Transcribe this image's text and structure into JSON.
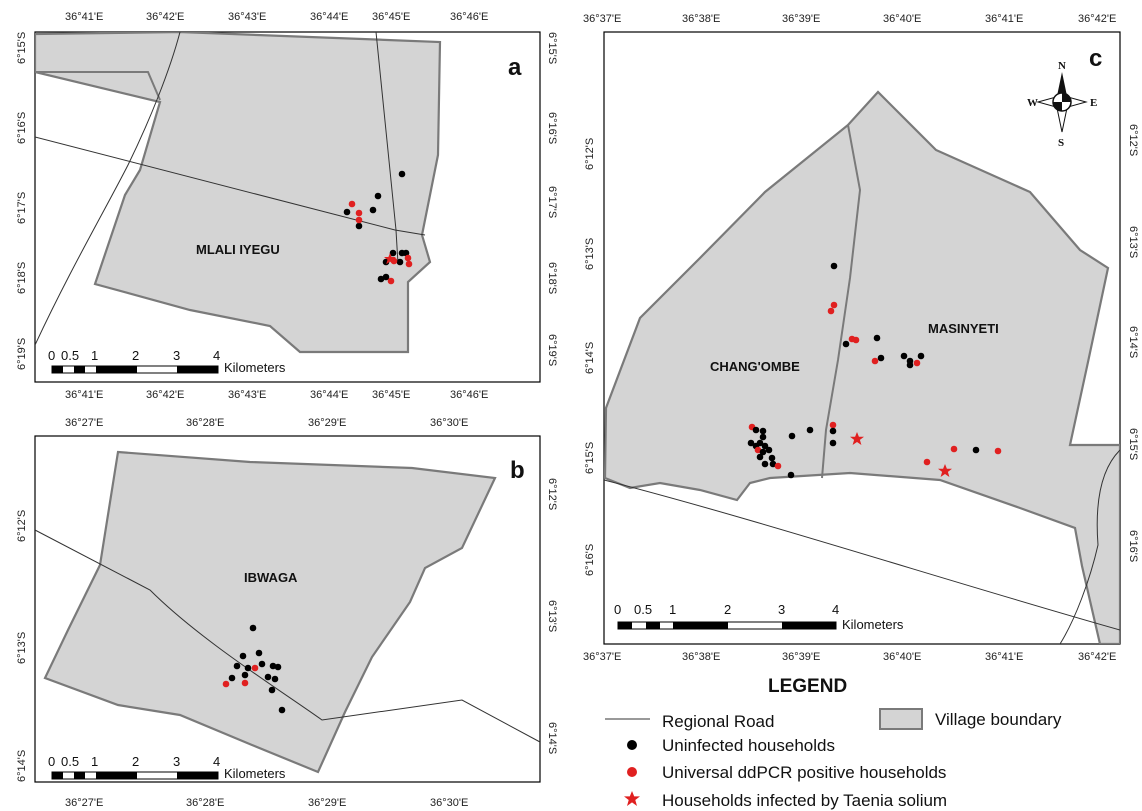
{
  "colors": {
    "village_fill": "#d4d4d4",
    "village_stroke": "#7a7a7a",
    "uninfected": "#000000",
    "ddpcr_positive": "#e02020",
    "taenia": "#e02020",
    "road": "#333333"
  },
  "panels": {
    "a": {
      "label": "a",
      "village": "MLALI IYEGU",
      "top_ticks": [
        "36°41'E",
        "36°42'E",
        "36°43'E",
        "36°44'E",
        "36°45'E",
        "36°46'E"
      ],
      "bottom_ticks": [
        "36°41'E",
        "36°42'E",
        "36°43'E",
        "36°44'E",
        "36°45'E",
        "36°46'E"
      ],
      "left_ticks": [
        "6°15'S",
        "6°16'S",
        "6°17'S",
        "6°18'S",
        "6°19'S"
      ],
      "right_ticks": [
        "6°15'S",
        "6°16'S",
        "6°17'S",
        "6°18'S",
        "6°19'S"
      ],
      "scalebar_labels": [
        "0",
        "0.5",
        "1",
        "2",
        "3",
        "4"
      ],
      "scalebar_unit": "Kilometers"
    },
    "b": {
      "label": "b",
      "village": "IBWAGA",
      "top_ticks": [
        "36°27'E",
        "36°28'E",
        "36°29'E",
        "36°30'E"
      ],
      "bottom_ticks": [
        "36°27'E",
        "36°28'E",
        "36°29'E",
        "36°30'E"
      ],
      "left_ticks": [
        "6°12'S",
        "6°13'S",
        "6°14'S"
      ],
      "right_ticks": [
        "6°12'S",
        "6°13'S",
        "6°14'S"
      ],
      "scalebar_labels": [
        "0",
        "0.5",
        "1",
        "2",
        "3",
        "4"
      ],
      "scalebar_unit": "Kilometers"
    },
    "c": {
      "label": "c",
      "villages": [
        "CHANG'OMBE",
        "MASINYETI"
      ],
      "top_ticks": [
        "36°37'E",
        "36°38'E",
        "36°39'E",
        "36°40'E",
        "36°41'E",
        "36°42'E"
      ],
      "bottom_ticks": [
        "36°37'E",
        "36°38'E",
        "36°39'E",
        "36°40'E",
        "36°41'E",
        "36°42'E"
      ],
      "left_ticks": [
        "6°12'S",
        "6°13'S",
        "6°14'S",
        "6°15'S",
        "6°16'S"
      ],
      "right_ticks": [
        "6°12'S",
        "6°13'S",
        "6°14'S",
        "6°15'S",
        "6°16'S"
      ],
      "scalebar_labels": [
        "0",
        "0.5",
        "1",
        "2",
        "3",
        "4"
      ],
      "scalebar_unit": "Kilometers",
      "compass": {
        "n": "N",
        "s": "S",
        "e": "E",
        "w": "W"
      }
    }
  },
  "legend": {
    "title": "LEGEND",
    "road": "Regional Road",
    "village": "Village boundary",
    "uninfected": "Uninfected households",
    "ddpcr": "Universal ddPCR positive households",
    "taenia": "Households infected by Taenia solium"
  }
}
